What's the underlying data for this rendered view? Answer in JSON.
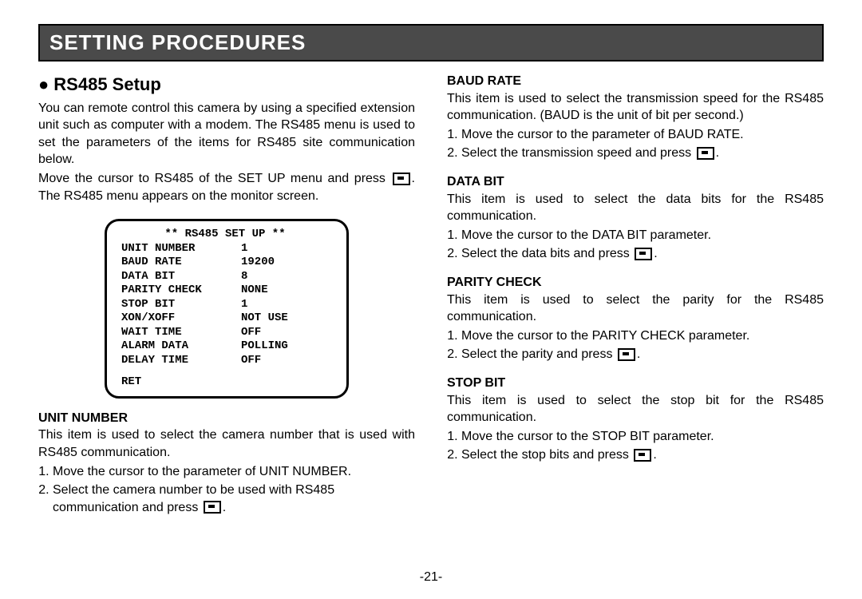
{
  "header": "SETTING PROCEDURES",
  "page_number": "-21-",
  "left": {
    "title": "RS485 Setup",
    "intro": [
      "You can remote control this camera by using a specified extension unit such as computer with a modem. The RS485 menu is used to set the parameters of the items for RS485 site communication below.",
      "Move the cursor to RS485 of the SET UP menu and press",
      ".  The RS485 menu appears on the monitor screen."
    ],
    "menu": {
      "title": "**  RS485  SET  UP  **",
      "rows": [
        {
          "label": "UNIT NUMBER",
          "value": "1"
        },
        {
          "label": "BAUD RATE",
          "value": "19200"
        },
        {
          "label": "DATA BIT",
          "value": "8"
        },
        {
          "label": "PARITY CHECK",
          "value": "NONE"
        },
        {
          "label": "STOP BIT",
          "value": "1"
        },
        {
          "label": "XON/XOFF",
          "value": "NOT USE"
        },
        {
          "label": "WAIT TIME",
          "value": "OFF"
        },
        {
          "label": "ALARM DATA",
          "value": "POLLING"
        },
        {
          "label": "DELAY TIME",
          "value": "OFF"
        }
      ],
      "ret": "RET"
    },
    "unit_number": {
      "heading": "UNIT NUMBER",
      "desc": "This item is used to select the camera number that is used with RS485 communication.",
      "step1": "Move the cursor to the parameter of UNIT NUMBER.",
      "step2a": "Select the camera number to be used with RS485 communication and press",
      "step2b": "."
    }
  },
  "right": {
    "baud_rate": {
      "heading": "BAUD RATE",
      "desc": "This item is used to select the transmission speed for the RS485 communication. (BAUD is the unit of bit per second.)",
      "step1": "Move the cursor to the parameter of BAUD RATE.",
      "step2a": "Select the transmission speed and press",
      "step2b": "."
    },
    "data_bit": {
      "heading": "DATA BIT",
      "desc": "This item is used to select the data bits for the RS485 communication.",
      "step1": "Move the cursor to the DATA BIT parameter.",
      "step2a": "Select the data bits and press",
      "step2b": "."
    },
    "parity": {
      "heading": "PARITY CHECK",
      "desc": "This item is used to select the parity for the RS485 communication.",
      "step1": "Move the cursor to the PARITY CHECK parameter.",
      "step2a": "Select the parity and press",
      "step2b": "."
    },
    "stop_bit": {
      "heading": "STOP BIT",
      "desc": "This item is used to select the stop bit for the RS485 communication.",
      "step1": "Move the cursor to the STOP BIT parameter.",
      "step2a": "Select the stop bits and press",
      "step2b": "."
    }
  }
}
